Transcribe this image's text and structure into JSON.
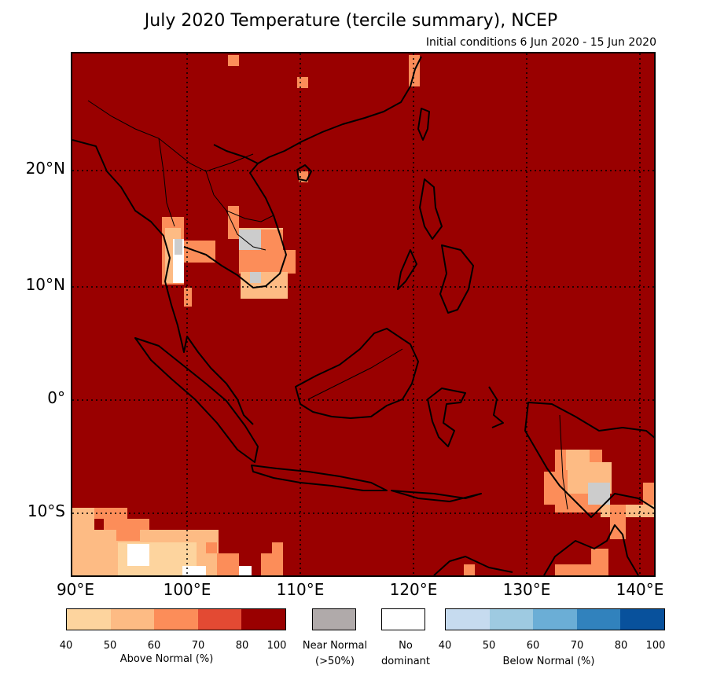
{
  "title": "July 2020 Temperature (tercile summary), NCEP",
  "subtitle": "Initial conditions 6 Jun 2020 - 15 Jun 2020",
  "map": {
    "extent": {
      "lon": [
        90,
        142
      ],
      "lat": [
        -16,
        30
      ]
    },
    "dominant_fill": "#990000",
    "lat_labels": [
      "20°N",
      "10°N",
      "0°",
      "10°S"
    ],
    "lon_labels": [
      "90°E",
      "100°E",
      "110°E",
      "120°E",
      "130°E",
      "140°E"
    ]
  },
  "legend": {
    "above": {
      "caption": "Above Normal (%)",
      "ticks": [
        "40",
        "50",
        "60",
        "70",
        "80",
        "100"
      ],
      "colors": [
        "#fdd49e",
        "#fdbb84",
        "#fc8d59",
        "#e34a33",
        "#990000"
      ]
    },
    "near": {
      "caption_line1": "Near Normal",
      "caption_line2": "(>50%)",
      "color": "#b0aaaa"
    },
    "none": {
      "caption_line1": "No",
      "caption_line2": "dominant",
      "color": "#ffffff"
    },
    "below": {
      "caption": "Below Normal (%)",
      "ticks": [
        "40",
        "50",
        "60",
        "70",
        "80",
        "100"
      ],
      "colors": [
        "#c6dbef",
        "#9ecae1",
        "#6baed6",
        "#3182bd",
        "#08519c"
      ]
    }
  }
}
